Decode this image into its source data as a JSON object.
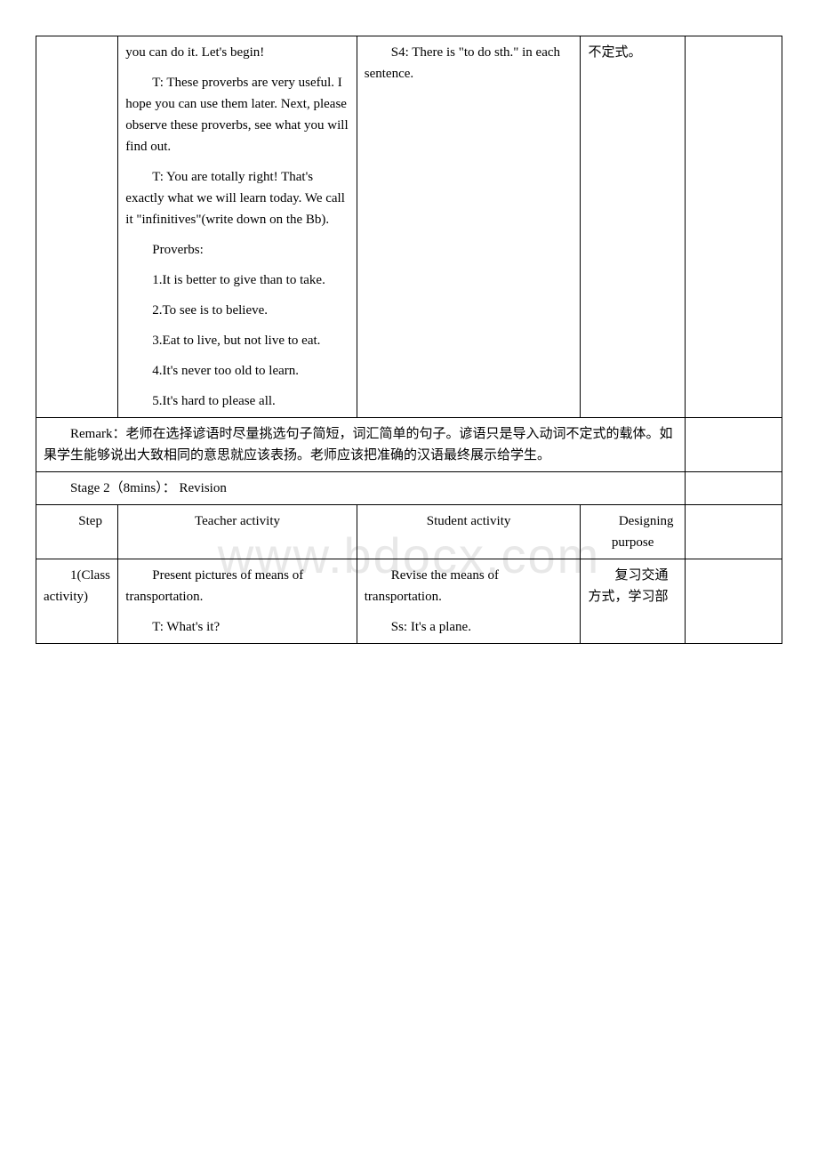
{
  "watermark": "www.bdocx.com",
  "row1": {
    "teacher_p1": "you can do it. Let's begin!",
    "teacher_p2": "T: These proverbs are very useful. I hope you can use them later. Next, please observe these proverbs, see what you will find out.",
    "teacher_p3": "T: You are totally right! That's exactly what we will learn today. We call it \"infinitives\"(write down on the Bb).",
    "teacher_p4": "Proverbs:",
    "teacher_p5": "1.It is better to give than to take.",
    "teacher_p6": "2.To see is to believe.",
    "teacher_p7": "3.Eat to live, but not live to eat.",
    "teacher_p8": "4.It's never too old to learn.",
    "teacher_p9": "5.It's hard to please all.",
    "student_p1": "S4: There is \"to do sth.\" in each sentence.",
    "purpose": "不定式。"
  },
  "remark": {
    "text": "Remark：老师在选择谚语时尽量挑选句子简短，词汇简单的句子。谚语只是导入动词不定式的载体。如果学生能够说出大致相同的意思就应该表扬。老师应该把准确的汉语最终展示给学生。"
  },
  "stage2_header": "Stage 2（8mins）： Revision",
  "headers": {
    "step": "Step",
    "teacher": "Teacher activity",
    "student": "Student activity",
    "purpose": "Designing purpose"
  },
  "row_last": {
    "step": "1(Class activity)",
    "teacher_p1": "Present pictures of means of transportation.",
    "teacher_p2": "T: What's it?",
    "student_p1": "Revise the means of transportation.",
    "student_p2": "Ss: It's a plane.",
    "purpose": "复习交通方式，学习部"
  }
}
